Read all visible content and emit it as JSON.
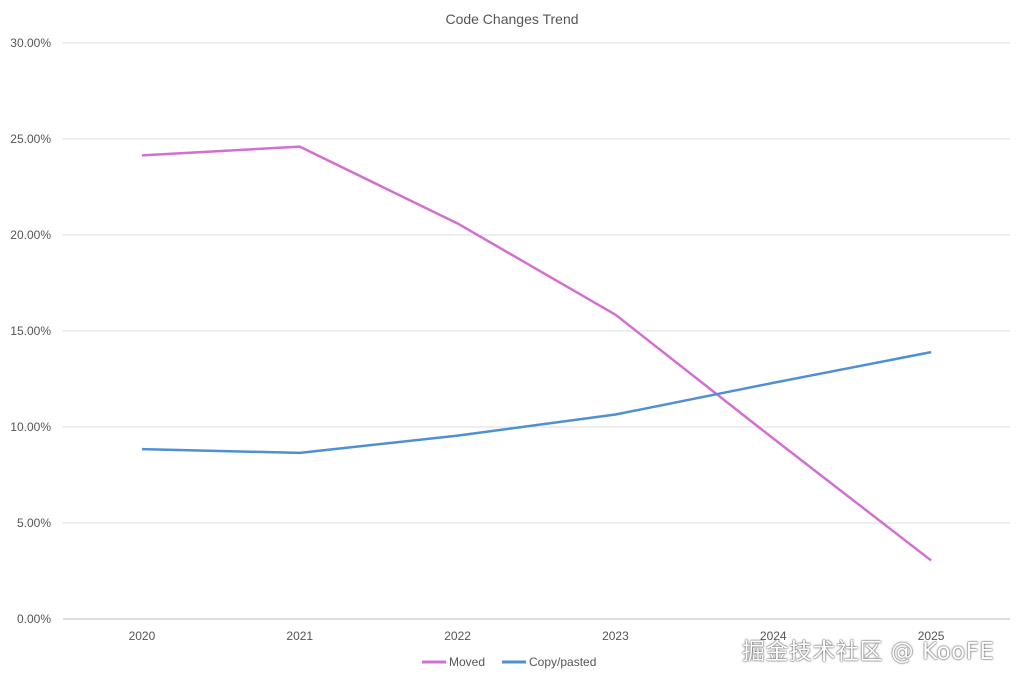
{
  "chart_data": {
    "type": "line",
    "title": "Code Changes Trend",
    "xlabel": "",
    "ylabel": "",
    "categories": [
      "2020",
      "2021",
      "2022",
      "2023",
      "2024",
      "2025"
    ],
    "ylim": [
      0,
      30
    ],
    "yticks": [
      "0.00%",
      "5.00%",
      "10.00%",
      "15.00%",
      "20.00%",
      "25.00%",
      "30.00%"
    ],
    "grid": true,
    "legend_position": "bottom",
    "series": [
      {
        "name": "Moved",
        "color": "#d36fd0",
        "values": [
          24.15,
          24.6,
          20.6,
          15.85,
          9.4,
          3.05
        ]
      },
      {
        "name": "Copy/pasted",
        "color": "#4f8fd4",
        "values": [
          8.85,
          8.65,
          9.55,
          10.65,
          12.3,
          13.9
        ]
      }
    ]
  },
  "watermark": "掘金技术社区 @ KooFE"
}
